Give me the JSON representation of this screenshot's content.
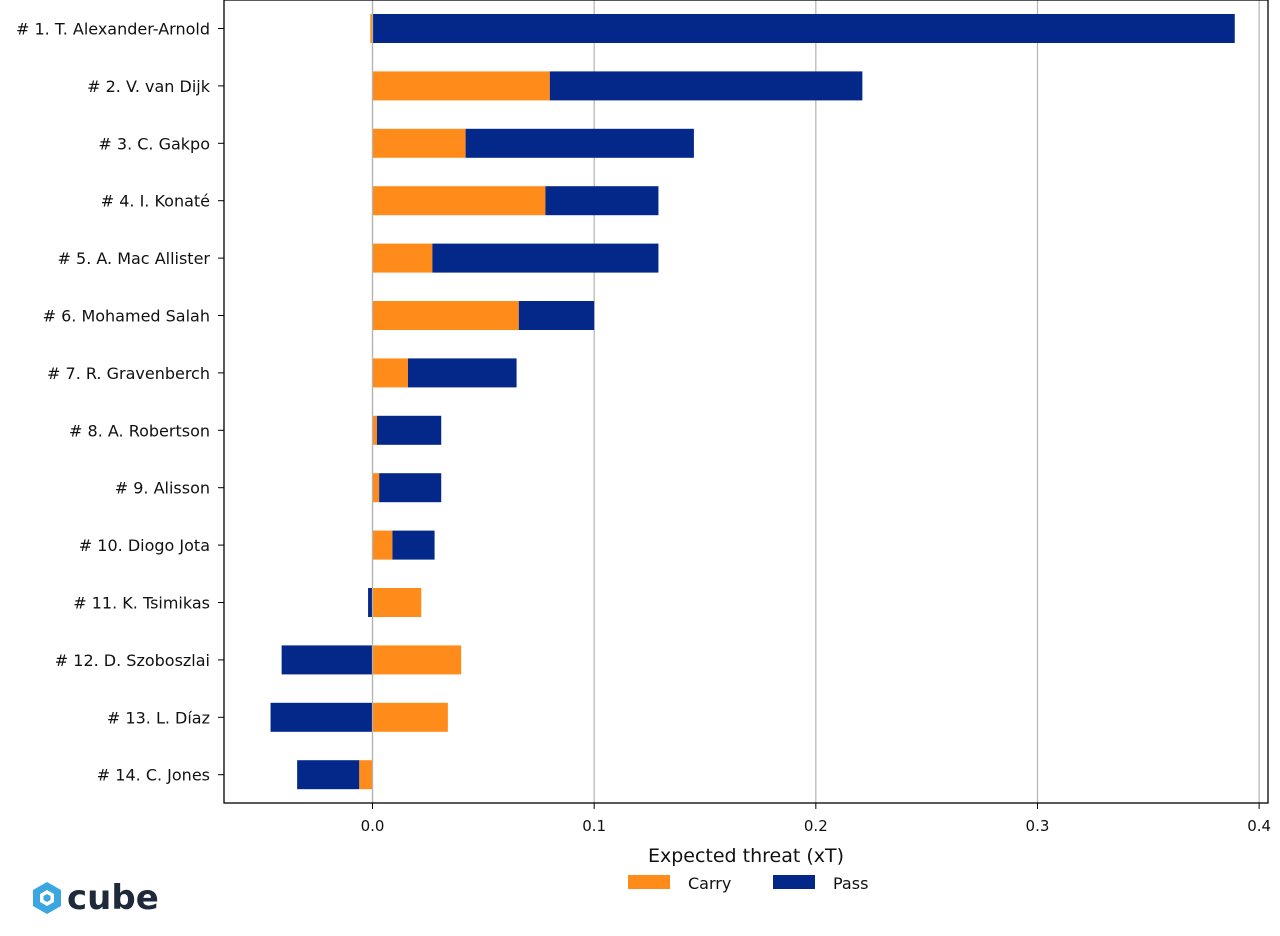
{
  "chart_data": {
    "type": "bar",
    "orientation": "horizontal",
    "stacked": true,
    "xlabel": "Expected threat (xT)",
    "xlim": [
      -0.067,
      0.404
    ],
    "xticks": [
      0.0,
      0.1,
      0.2,
      0.3,
      0.4
    ],
    "xtick_labels": [
      "0.0",
      "0.1",
      "0.2",
      "0.3",
      "0.4"
    ],
    "grid": "vertical",
    "legend_position": "bottom-center",
    "categories": [
      "# 1.  T. Alexander-Arnold",
      "# 2.  V. van Dijk",
      "# 3.  C. Gakpo",
      "# 4.  I. Konaté",
      "# 5.  A. Mac Allister",
      "# 6.  Mohamed Salah",
      "# 7.  R. Gravenberch",
      "# 8.  A. Robertson",
      "# 9.  Alisson",
      "# 10.  Diogo Jota",
      "# 11.  K. Tsimikas",
      "# 12.  D. Szoboszlai",
      "# 13.  L. Díaz",
      "# 14.  C. Jones"
    ],
    "series": [
      {
        "name": "Carry",
        "color": "#ff8c1a",
        "values": [
          -0.001,
          0.08,
          0.042,
          0.078,
          0.027,
          0.066,
          0.016,
          0.002,
          0.003,
          0.009,
          0.022,
          0.04,
          0.034,
          -0.006
        ]
      },
      {
        "name": "Pass",
        "color": "#03288a",
        "values": [
          0.389,
          0.141,
          0.103,
          0.051,
          0.102,
          0.034,
          0.049,
          0.029,
          0.028,
          0.019,
          -0.002,
          -0.041,
          -0.046,
          -0.028
        ]
      }
    ]
  },
  "logo": {
    "text": "cube",
    "icon": "cube-logo-icon",
    "color": "#3aa7e0"
  }
}
